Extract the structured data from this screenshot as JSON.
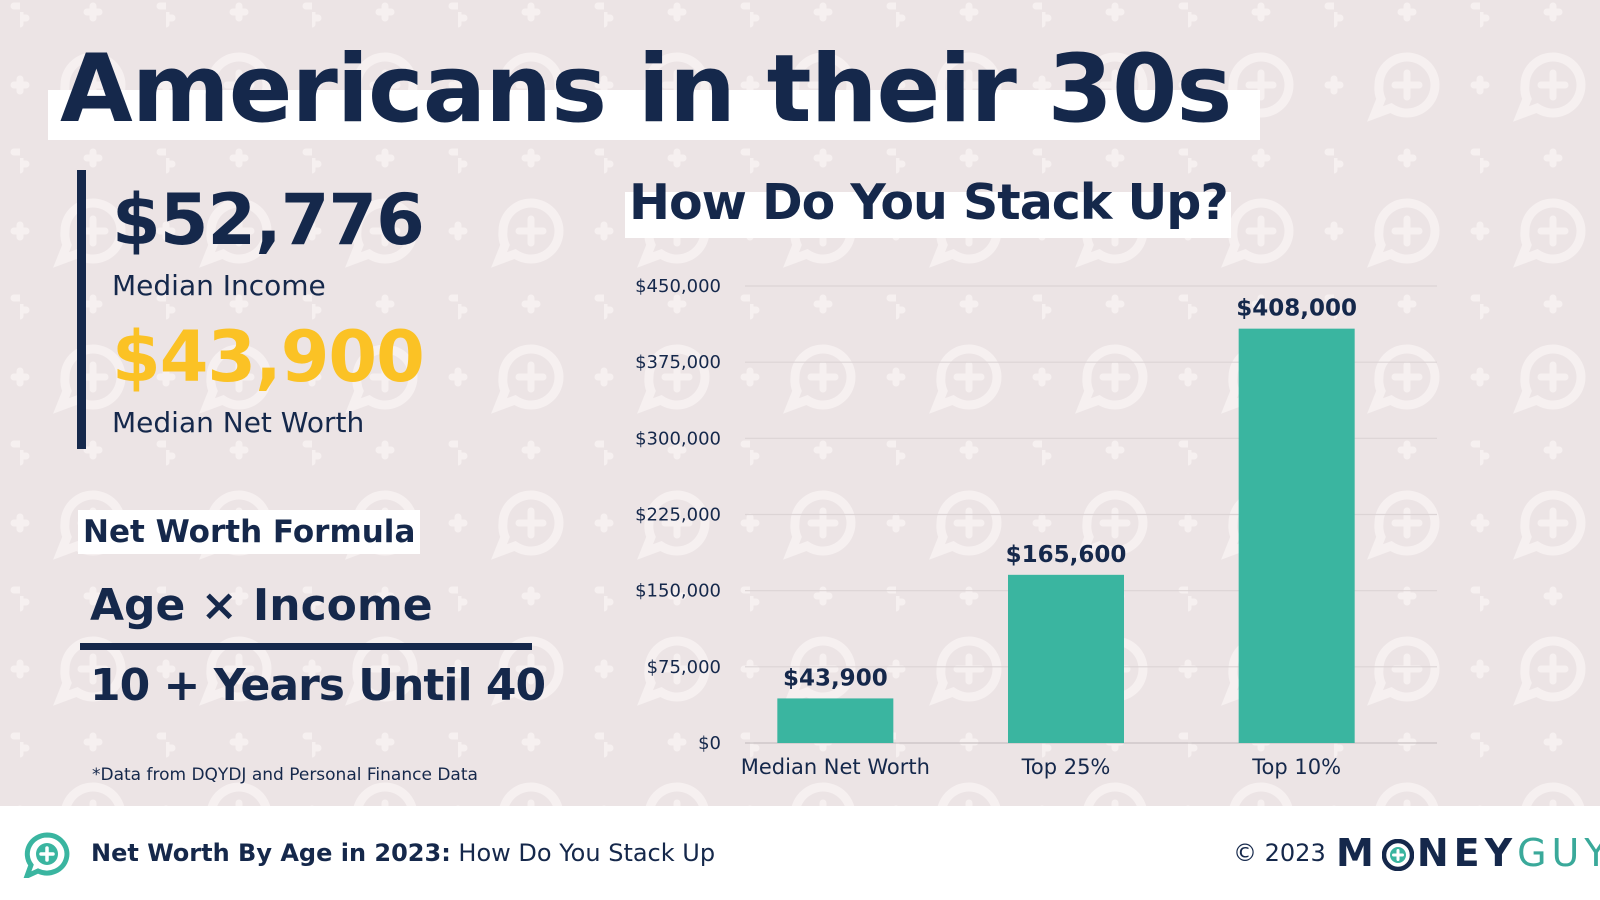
{
  "header": {
    "title": "Americans in their 30s"
  },
  "stats": {
    "income_value": "$52,776",
    "income_label": "Median Income",
    "networth_value": "$43,900",
    "networth_label": "Median Net Worth"
  },
  "formula": {
    "title": "Net Worth Formula",
    "numerator": "Age × Income",
    "denominator": "10 + Years Until 40"
  },
  "source_note": "*Data from DQYDJ and Personal Finance Data",
  "footer": {
    "title_bold": "Net Worth By Age in 2023:",
    "title_rest": " How Do You Stack Up",
    "copyright": "© 2023",
    "logo_part1": "M",
    "logo_part2": "NEY",
    "logo_part3": "GUY"
  },
  "colors": {
    "navy": "#15284b",
    "gold": "#fbc225",
    "teal": "#3ab5a0",
    "background": "#ece4e5",
    "pattern": "#f6f0f0"
  },
  "icons": {
    "footer": "chat-plus-icon",
    "logo_o": "plus-circle-icon",
    "background_pattern": "chat-plus-icon"
  },
  "chart_data": {
    "type": "bar",
    "title": "How Do You Stack Up?",
    "categories": [
      "Median Net Worth",
      "Top 25%",
      "Top 10%"
    ],
    "values": [
      43900,
      165600,
      408000
    ],
    "value_labels": [
      "$43,900",
      "$165,600",
      "$408,000"
    ],
    "ylim": [
      0,
      450000
    ],
    "yticks": [
      0,
      75000,
      150000,
      225000,
      300000,
      375000,
      450000
    ],
    "ytick_labels": [
      "$0",
      "$75,000",
      "$150,000",
      "$225,000",
      "$300,000",
      "$375,000",
      "$450,000"
    ],
    "xlabel": "",
    "ylabel": "",
    "grid": true,
    "legend": "none"
  }
}
